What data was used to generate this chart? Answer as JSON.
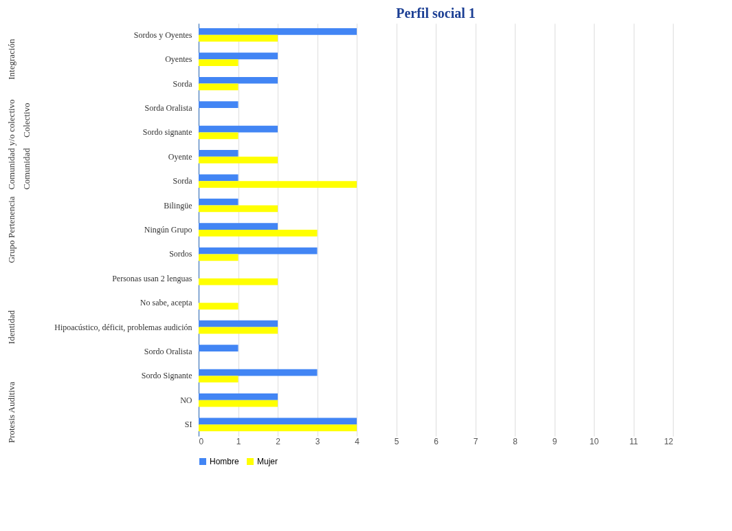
{
  "chart_data": {
    "type": "bar",
    "orientation": "horizontal",
    "title": "Perfil social 1",
    "categories": [
      "Sordos y Oyentes",
      "Oyentes",
      "Sorda",
      "Sorda Oralista",
      "Sordo signante",
      "Oyente",
      "Sorda",
      "Bilingüe",
      "Ningún Grupo",
      "Sordos",
      "Personas usan 2 lenguas",
      "No sabe, acepta",
      "Hipoacústico, déficit, problemas audición",
      "Sordo Oralista",
      "Sordo Signante",
      "NO",
      "SI"
    ],
    "series": [
      {
        "name": "Hombre",
        "color": "#4285f4",
        "values": [
          4,
          2,
          2,
          1,
          2,
          1,
          1,
          1,
          2,
          3,
          0,
          0,
          2,
          1,
          3,
          2,
          4
        ]
      },
      {
        "name": "Mujer",
        "color": "#ffff00",
        "values": [
          2,
          1,
          1,
          0,
          1,
          2,
          4,
          2,
          3,
          1,
          2,
          1,
          2,
          0,
          1,
          2,
          4
        ]
      }
    ],
    "xlim": [
      0,
      12
    ],
    "xticks": [
      0,
      1,
      2,
      3,
      4,
      5,
      6,
      7,
      8,
      9,
      10,
      11,
      12
    ],
    "grid": "x",
    "legend": "bottom",
    "annotations": [
      "Integración",
      "Comunidad y/o colectivo",
      "Colectivo",
      "Comunidad",
      "Grupo Pertenencia",
      "Identidad",
      "Protesis Auditiva"
    ]
  }
}
